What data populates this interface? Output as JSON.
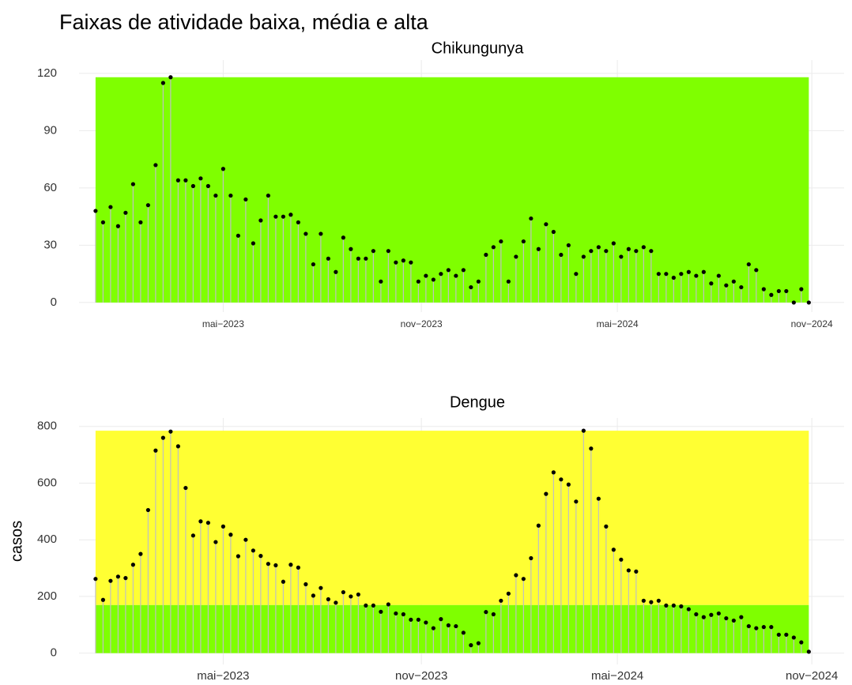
{
  "title": "Faixas de atividade baixa, média e alta",
  "chart_data": [
    {
      "type": "lollipop",
      "subtitle": "Chikungunya",
      "x": [
        0,
        1,
        2,
        3,
        4,
        5,
        6,
        7,
        8,
        9,
        10,
        11,
        12,
        13,
        14,
        15,
        16,
        17,
        18,
        19,
        20,
        21,
        22,
        23,
        24,
        25,
        26,
        27,
        28,
        29,
        30,
        31,
        32,
        33,
        34,
        35,
        36,
        37,
        38,
        39,
        40,
        41,
        42,
        43,
        44,
        45,
        46,
        47,
        48,
        49,
        50,
        51,
        52,
        53,
        54,
        55,
        56,
        57,
        58,
        59,
        60,
        61,
        62,
        63,
        64,
        65,
        66,
        67,
        68,
        69,
        70,
        71,
        72,
        73,
        74,
        75,
        76,
        77,
        78,
        79,
        80,
        81,
        82,
        83,
        84,
        85,
        86,
        87,
        88,
        89,
        90,
        91,
        92,
        93,
        94,
        95
      ],
      "values": [
        48,
        42,
        50,
        40,
        47,
        62,
        42,
        51,
        72,
        115,
        118,
        64,
        64,
        61,
        65,
        61,
        56,
        70,
        56,
        35,
        54,
        31,
        43,
        56,
        45,
        45,
        46,
        42,
        36,
        20,
        36,
        23,
        16,
        34,
        28,
        23,
        23,
        27,
        11,
        27,
        21,
        22,
        21,
        11,
        14,
        12,
        15,
        17,
        14,
        17,
        8,
        11,
        25,
        29,
        32,
        11,
        24,
        32,
        44,
        28,
        41,
        37,
        25,
        30,
        15,
        24,
        27,
        29,
        27,
        31,
        24,
        28,
        27,
        29,
        27,
        15,
        15,
        13,
        15,
        16,
        14,
        16,
        10,
        14,
        9,
        11,
        8,
        20,
        17,
        7,
        4,
        6,
        6,
        0,
        7,
        0
      ],
      "bands": [
        {
          "from": 0,
          "to": 118,
          "color": "#7fff00"
        }
      ],
      "xlim": [
        -2.2,
        99.7
      ],
      "xticks": [
        {
          "value": 17.0,
          "label": "mai−2023"
        },
        {
          "value": 43.4,
          "label": "nov−2023"
        },
        {
          "value": 69.5,
          "label": "mai−2024"
        },
        {
          "value": 95.4,
          "label": "nov−2024"
        }
      ],
      "ylim": [
        -5,
        127
      ],
      "yticks": [
        0,
        30,
        60,
        90,
        120
      ],
      "grid": true
    },
    {
      "type": "lollipop",
      "subtitle": "Dengue",
      "ylabel": "casos",
      "x": [
        0,
        1,
        2,
        3,
        4,
        5,
        6,
        7,
        8,
        9,
        10,
        11,
        12,
        13,
        14,
        15,
        16,
        17,
        18,
        19,
        20,
        21,
        22,
        23,
        24,
        25,
        26,
        27,
        28,
        29,
        30,
        31,
        32,
        33,
        34,
        35,
        36,
        37,
        38,
        39,
        40,
        41,
        42,
        43,
        44,
        45,
        46,
        47,
        48,
        49,
        50,
        51,
        52,
        53,
        54,
        55,
        56,
        57,
        58,
        59,
        60,
        61,
        62,
        63,
        64,
        65,
        66,
        67,
        68,
        69,
        70,
        71,
        72,
        73,
        74,
        75,
        76,
        77,
        78,
        79,
        80,
        81,
        82,
        83,
        84,
        85,
        86,
        87,
        88,
        89,
        90,
        91,
        92,
        93,
        94,
        95
      ],
      "values": [
        262,
        188,
        255,
        270,
        265,
        312,
        350,
        505,
        715,
        760,
        782,
        730,
        583,
        415,
        465,
        460,
        392,
        447,
        418,
        342,
        400,
        362,
        343,
        315,
        310,
        252,
        312,
        302,
        243,
        203,
        230,
        190,
        178,
        215,
        200,
        207,
        168,
        168,
        146,
        172,
        140,
        137,
        118,
        118,
        108,
        88,
        120,
        98,
        95,
        72,
        28,
        35,
        145,
        137,
        185,
        210,
        275,
        262,
        335,
        450,
        562,
        638,
        613,
        595,
        535,
        785,
        722,
        545,
        447,
        365,
        330,
        292,
        288,
        185,
        180,
        185,
        168,
        168,
        165,
        155,
        137,
        127,
        135,
        140,
        123,
        115,
        127,
        95,
        88,
        92,
        92,
        65,
        65,
        55,
        38,
        5
      ],
      "bands": [
        {
          "from": 0,
          "to": 170,
          "color": "#7fff00"
        },
        {
          "from": 170,
          "to": 785,
          "color": "#ffff33"
        }
      ],
      "xlim": [
        -2.2,
        99.7
      ],
      "xticks": [
        {
          "value": 17.0,
          "label": "mai−2023"
        },
        {
          "value": 43.4,
          "label": "nov−2023"
        },
        {
          "value": 69.5,
          "label": "mai−2024"
        },
        {
          "value": 95.4,
          "label": "nov−2024"
        }
      ],
      "ylim": [
        -40,
        830
      ],
      "yticks": [
        0,
        200,
        400,
        600,
        800
      ],
      "grid": true
    }
  ]
}
